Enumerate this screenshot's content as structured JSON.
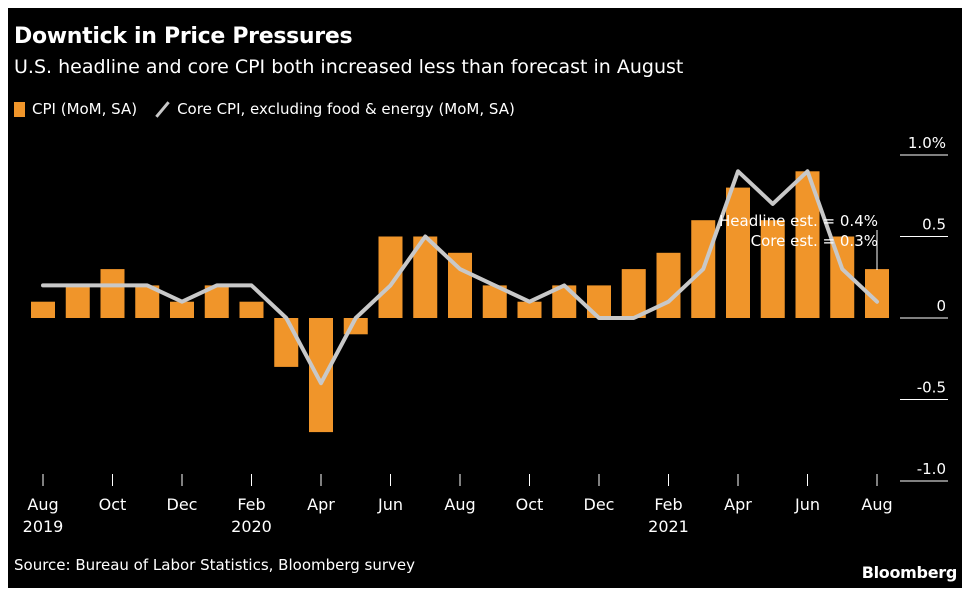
{
  "header": {
    "title": "Downtick in Price Pressures",
    "subtitle": "U.S. headline and core CPI both increased less than forecast in August"
  },
  "legend": {
    "bar_label": "CPI (MoM, SA)",
    "line_label": "Core CPI, excluding food & energy (MoM, SA)"
  },
  "footer": {
    "source": "Source: Bureau of Labor Statistics, Bloomberg survey",
    "brand": "Bloomberg"
  },
  "colors": {
    "bar": "#f0952a",
    "line": "#c8c8c8",
    "background": "#000000",
    "text": "#ffffff",
    "axis": "#ffffff"
  },
  "chart_data": {
    "type": "bar",
    "categories": [
      "Aug 2019",
      "Sep 2019",
      "Oct 2019",
      "Nov 2019",
      "Dec 2019",
      "Jan 2020",
      "Feb 2020",
      "Mar 2020",
      "Apr 2020",
      "May 2020",
      "Jun 2020",
      "Jul 2020",
      "Aug 2020",
      "Sep 2020",
      "Oct 2020",
      "Nov 2020",
      "Dec 2020",
      "Jan 2021",
      "Feb 2021",
      "Mar 2021",
      "Apr 2021",
      "May 2021",
      "Jun 2021",
      "Jul 2021",
      "Aug 2021"
    ],
    "series": [
      {
        "name": "CPI (MoM, SA)",
        "type": "bar",
        "values": [
          0.1,
          0.2,
          0.3,
          0.2,
          0.1,
          0.2,
          0.1,
          -0.3,
          -0.7,
          -0.1,
          0.5,
          0.5,
          0.4,
          0.2,
          0.1,
          0.2,
          0.2,
          0.3,
          0.4,
          0.6,
          0.8,
          0.6,
          0.9,
          0.5,
          0.3
        ]
      },
      {
        "name": "Core CPI, excluding food & energy (MoM, SA)",
        "type": "line",
        "values": [
          0.2,
          0.2,
          0.2,
          0.2,
          0.1,
          0.2,
          0.2,
          0.0,
          -0.4,
          0.0,
          0.2,
          0.5,
          0.3,
          0.2,
          0.1,
          0.2,
          0.0,
          0.0,
          0.1,
          0.3,
          0.9,
          0.7,
          0.9,
          0.3,
          0.1
        ]
      }
    ],
    "ylim": [
      -1.0,
      1.0
    ],
    "y_ticks": [
      {
        "value": 1.0,
        "label": "1.0%"
      },
      {
        "value": 0.5,
        "label": "0.5"
      },
      {
        "value": 0,
        "label": "0"
      },
      {
        "value": -0.5,
        "label": "-0.5"
      },
      {
        "value": -1.0,
        "label": "-1.0"
      }
    ],
    "x_ticks": [
      {
        "index": 0,
        "label": "Aug",
        "year": "2019"
      },
      {
        "index": 2,
        "label": "Oct",
        "year": ""
      },
      {
        "index": 4,
        "label": "Dec",
        "year": ""
      },
      {
        "index": 6,
        "label": "Feb",
        "year": "2020"
      },
      {
        "index": 8,
        "label": "Apr",
        "year": ""
      },
      {
        "index": 10,
        "label": "Jun",
        "year": ""
      },
      {
        "index": 12,
        "label": "Aug",
        "year": ""
      },
      {
        "index": 14,
        "label": "Oct",
        "year": ""
      },
      {
        "index": 16,
        "label": "Dec",
        "year": ""
      },
      {
        "index": 18,
        "label": "Feb",
        "year": "2021"
      },
      {
        "index": 20,
        "label": "Apr",
        "year": ""
      },
      {
        "index": 22,
        "label": "Jun",
        "year": ""
      },
      {
        "index": 24,
        "label": "Aug",
        "year": ""
      }
    ],
    "annotations": [
      "Headline est. = 0.4%",
      "Core est. = 0.3%"
    ],
    "legend_position": "top-left",
    "grid": false
  }
}
